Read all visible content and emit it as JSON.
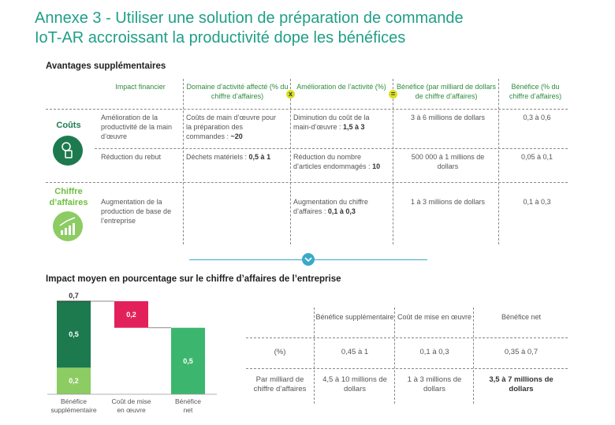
{
  "header": {
    "title_line1": "Annexe 3 - Utiliser une solution de préparation de commande",
    "title_line2": "IoT-AR accroissant la productivité dope les bénéfices"
  },
  "table1": {
    "title": "Avantages supplémentaires",
    "columns": [
      "Impact financier",
      "Domaine d’activité affecté (% du chiffre d’affaires)",
      "Amélioration de l’activité (%)",
      "Bénéfice (par milliard de dollars de chiffre d’affaires)",
      "Bénéfice (% du chiffre d’affaires)"
    ],
    "operators": [
      "x",
      "="
    ],
    "groups": [
      {
        "label": "Coûts",
        "rows": [
          [
            "Amélioration de la productivité de la main d’œuvre",
            {
              "text": "Coûts de main d’œuvre pour la préparation des commandes :",
              "strong": "~20"
            },
            {
              "text": "Diminution du coût de la main-d’œuvre :",
              "strong": "1,5 à 3"
            },
            "3 à 6 millions de dollars",
            "0,3 à 0,6"
          ],
          [
            "Réduction du rebut",
            {
              "text": "Déchets matériels :",
              "strong": "0,5 à 1"
            },
            {
              "text": "Réduction du nombre d’articles endommagés :",
              "strong": "10"
            },
            "500 000 à 1 millions de dollars",
            "0,05 à 0,1"
          ]
        ]
      },
      {
        "label": "Chiffre d’affaires",
        "rows": [
          [
            "Augmentation de la production de base de l’entreprise",
            null,
            {
              "text": "Augmentation du chiffre d’affaires :",
              "strong": "0,1 à 0,3"
            },
            "1 à 3 millions de dollars",
            "0,1 à 0,3"
          ]
        ]
      }
    ]
  },
  "chart_title": "Impact moyen en pourcentage sur le chiffre d’affaires de l’entreprise",
  "chart_data": {
    "type": "waterfall",
    "categories": [
      [
        "Bénéfice",
        "supplémentaire"
      ],
      [
        "Coût de mise",
        "en œuvre"
      ],
      [
        "Bénéfice",
        "net"
      ]
    ],
    "bars": [
      {
        "kind": "increase",
        "values": [
          0.2,
          0.5
        ],
        "value_labels": [
          "0,2",
          "0,5"
        ],
        "colors": [
          "#8ccc63",
          "#1d7a4f"
        ],
        "total": 0.7,
        "total_label": "0,7"
      },
      {
        "kind": "decrease",
        "values": [
          0.2
        ],
        "value_labels": [
          "0,2"
        ],
        "colors": [
          "#e2215a"
        ]
      },
      {
        "kind": "total",
        "values": [
          0.5
        ],
        "value_labels": [
          "0,5"
        ],
        "colors": [
          "#3cb66e"
        ]
      }
    ]
  },
  "table2": {
    "columns": [
      null,
      "Bénéfice supplémentaire",
      "Coût de mise en œuvre",
      "Bénéfice net"
    ],
    "rows": [
      [
        "(%)",
        "0,45 à 1",
        "0,1 à 0,3",
        "0,35 à 0,7"
      ],
      [
        "Par milliard de chiffre d’affaires",
        "4,5 à 10 millions de dollars",
        "1 à 3 millions de dollars",
        "3,5 à 7 millions de dollars"
      ]
    ]
  }
}
